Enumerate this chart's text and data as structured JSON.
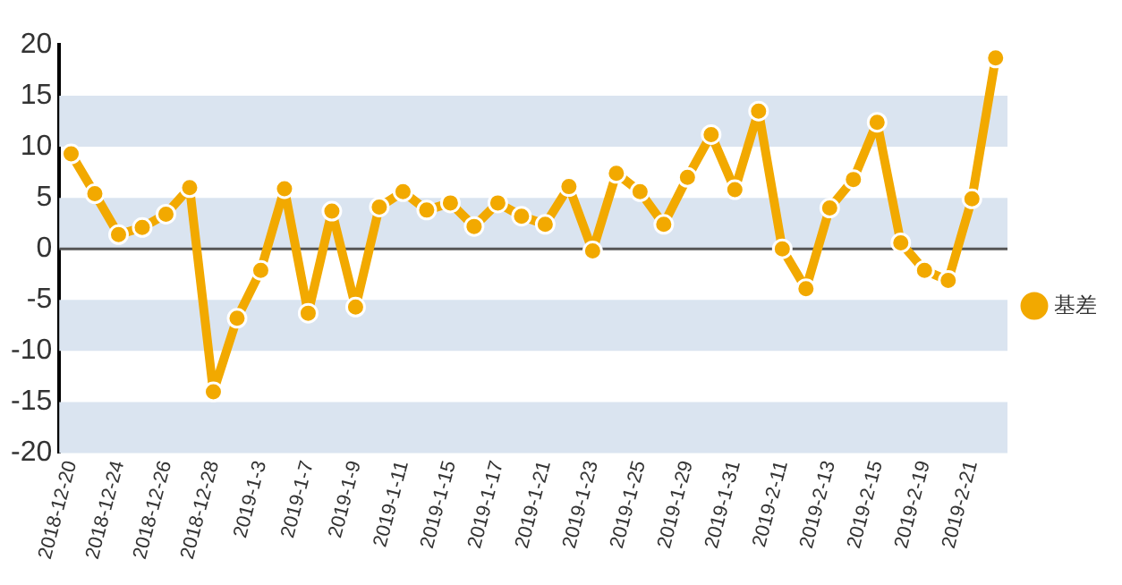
{
  "chart_data": {
    "type": "line",
    "categories": [
      "2018-12-20",
      null,
      "2018-12-24",
      null,
      "2018-12-26",
      null,
      "2018-12-28",
      null,
      "2019-1-3",
      null,
      "2019-1-7",
      null,
      "2019-1-9",
      null,
      "2019-1-11",
      null,
      "2019-1-15",
      null,
      "2019-1-17",
      null,
      "2019-1-21",
      null,
      "2019-1-23",
      null,
      "2019-1-25",
      null,
      "2019-1-29",
      null,
      "2019-1-31",
      null,
      "2019-2-11",
      null,
      "2019-2-13",
      null,
      "2019-2-15",
      null,
      "2019-2-19",
      null,
      "2019-2-21",
      null
    ],
    "series": [
      {
        "name": "基差",
        "color": "#f2a900",
        "values": [
          9.3,
          5.4,
          1.4,
          2.1,
          3.4,
          6.0,
          -14.0,
          -6.8,
          -2.1,
          5.9,
          -6.3,
          3.7,
          -5.7,
          4.1,
          5.6,
          3.8,
          4.5,
          2.2,
          4.5,
          3.2,
          2.4,
          6.1,
          -0.2,
          7.4,
          5.6,
          2.4,
          7.0,
          11.2,
          5.8,
          13.5,
          0.0,
          -3.9,
          4.0,
          6.8,
          12.4,
          0.6,
          -2.1,
          -3.1,
          4.9,
          18.7
        ]
      }
    ],
    "ylim": [
      -20,
      20
    ],
    "yticks": [
      -20,
      -15,
      -10,
      -5,
      0,
      5,
      10,
      15,
      20
    ],
    "bands": [
      {
        "axis": "y",
        "from": -20,
        "to": -15,
        "color": "#dae4f0"
      },
      {
        "axis": "y",
        "from": -10,
        "to": -5,
        "color": "#dae4f0"
      },
      {
        "axis": "y",
        "from": 0,
        "to": 5,
        "color": "#dae4f0"
      },
      {
        "axis": "y",
        "from": 10,
        "to": 15,
        "color": "#dae4f0"
      }
    ],
    "ref_lines": [
      {
        "axis": "y",
        "value": 0,
        "color": "#555555"
      }
    ],
    "grid": false,
    "legend": "right",
    "marker": "circle",
    "line_style": "solid"
  }
}
